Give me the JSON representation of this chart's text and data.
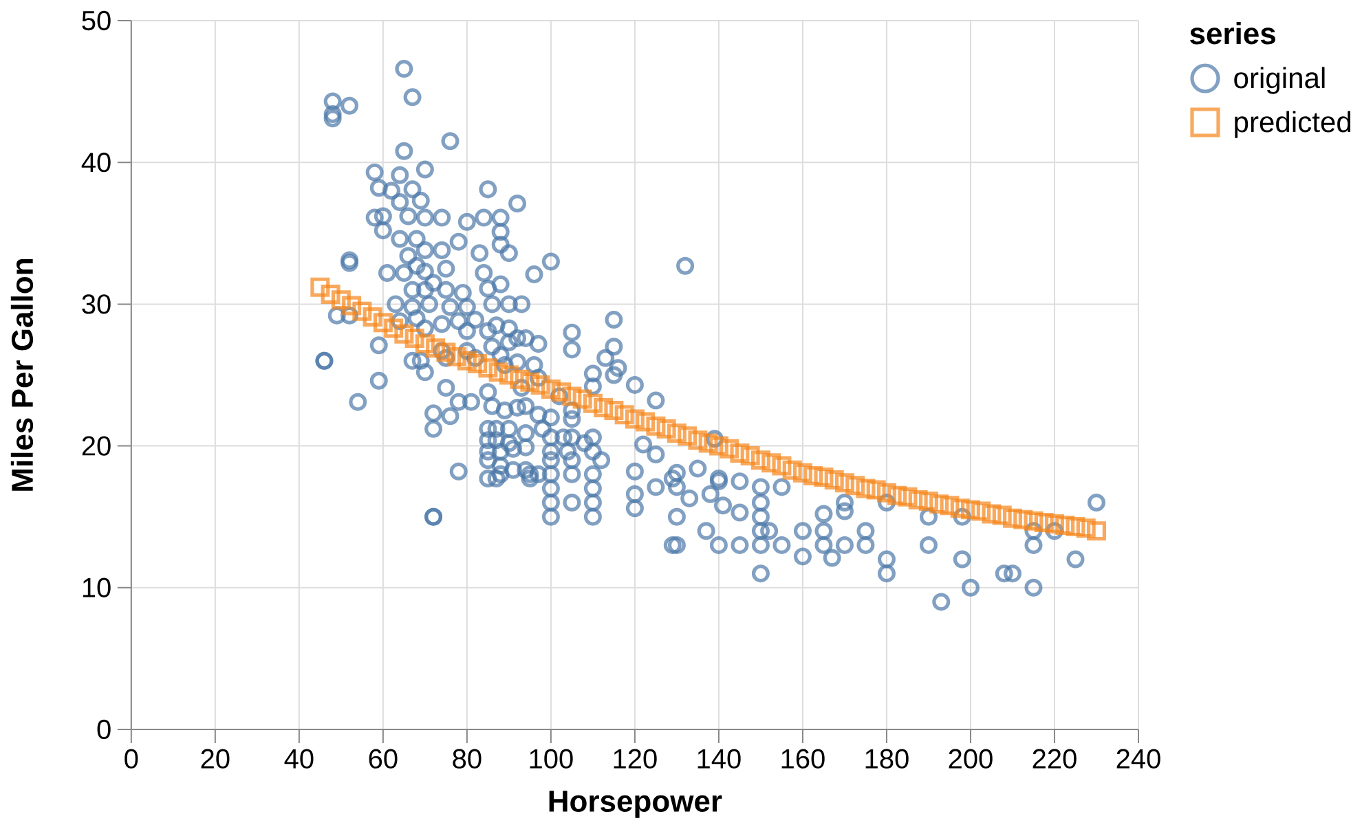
{
  "chart_data": {
    "type": "scatter",
    "xlabel": "Horsepower",
    "ylabel": "Miles Per Gallon",
    "legend_title": "series",
    "xlim": [
      0,
      240
    ],
    "ylim": [
      0,
      50
    ],
    "xticks": [
      0,
      20,
      40,
      60,
      80,
      100,
      120,
      140,
      160,
      180,
      200,
      220,
      240
    ],
    "yticks": [
      0,
      10,
      20,
      30,
      40,
      50
    ],
    "grid": true,
    "legend": "top right",
    "series": [
      {
        "name": "original",
        "color": "#4c78a8",
        "marker": "circle",
        "x": [
          48,
          48,
          48,
          52,
          65,
          67,
          76,
          65,
          58,
          64,
          70,
          85,
          92,
          59,
          62,
          67,
          64,
          69,
          58,
          60,
          66,
          70,
          74,
          80,
          84,
          88,
          88,
          88,
          90,
          83,
          78,
          74,
          60,
          64,
          68,
          70,
          52,
          52,
          61,
          65,
          70,
          75,
          84,
          96,
          100,
          85,
          90,
          66,
          68,
          72,
          67,
          70,
          75,
          79,
          63,
          67,
          71,
          76,
          80,
          86,
          93,
          88,
          64,
          68,
          70,
          74,
          78,
          80,
          82,
          85,
          87,
          90,
          90,
          92,
          94,
          97,
          49,
          52,
          46,
          46,
          59,
          59,
          54,
          67,
          69,
          74,
          75,
          80,
          82,
          86,
          88,
          89,
          92,
          96,
          97,
          93,
          75,
          78,
          81,
          85,
          86,
          89,
          92,
          94,
          97,
          102,
          105,
          70,
          72,
          72,
          76,
          72,
          72,
          78,
          85,
          87,
          90,
          85,
          87,
          90,
          85,
          88,
          91,
          94,
          94,
          98,
          100,
          100,
          103,
          104,
          108,
          85,
          88,
          91,
          85,
          87,
          94,
          95,
          100,
          100,
          105,
          105,
          100,
          100,
          105,
          105,
          105,
          132,
          115,
          115,
          113,
          116,
          115,
          110,
          110,
          120,
          125,
          122,
          125,
          120,
          125,
          120,
          120,
          110,
          110,
          110,
          110,
          100,
          129,
          130,
          130,
          133,
          135,
          130,
          129,
          130,
          137,
          139,
          140,
          140,
          138,
          141,
          140,
          145,
          145,
          145,
          150,
          150,
          150,
          150,
          150,
          150,
          152,
          155,
          155,
          160,
          160,
          165,
          165,
          167,
          170,
          170,
          170,
          175,
          175,
          180,
          180,
          180,
          190,
          190,
          193,
          198,
          200,
          198,
          208,
          210,
          215,
          215,
          215,
          220,
          225,
          230,
          165,
          88,
          95,
          105,
          110,
          110,
          112,
          105,
          100,
          97
        ],
        "values": [
          44.3,
          43.4,
          43.1,
          44.0,
          46.6,
          44.6,
          41.5,
          40.8,
          39.3,
          39.1,
          39.5,
          38.1,
          37.1,
          38.2,
          38.0,
          38.1,
          37.2,
          37.3,
          36.1,
          36.2,
          36.2,
          36.1,
          36.1,
          35.8,
          36.1,
          36.1,
          35.1,
          34.2,
          33.6,
          33.6,
          34.4,
          33.8,
          35.2,
          34.6,
          34.6,
          33.8,
          33.1,
          32.9,
          32.2,
          32.2,
          32.3,
          32.5,
          32.2,
          32.1,
          33.0,
          31.1,
          30.0,
          33.4,
          32.7,
          31.5,
          31.0,
          31.0,
          31.0,
          30.8,
          30.0,
          29.8,
          30.0,
          29.8,
          29.8,
          30.0,
          30.0,
          31.4,
          28.8,
          29.0,
          28.3,
          28.6,
          28.8,
          28.1,
          28.9,
          28.1,
          28.5,
          28.3,
          27.3,
          27.6,
          27.6,
          27.2,
          29.2,
          29.2,
          26.0,
          26.0,
          27.1,
          24.6,
          23.1,
          26.0,
          26.0,
          26.7,
          26.2,
          26.7,
          26.2,
          27.0,
          26.4,
          25.7,
          25.9,
          25.7,
          24.8,
          24.1,
          24.1,
          23.1,
          23.1,
          23.8,
          22.8,
          22.5,
          22.7,
          22.8,
          22.2,
          23.5,
          22.5,
          25.2,
          22.3,
          21.2,
          22.1,
          15.0,
          15.0,
          18.2,
          21.2,
          21.2,
          21.2,
          20.4,
          20.4,
          20.2,
          19.6,
          19.6,
          19.8,
          20.9,
          19.9,
          21.2,
          20.6,
          19.6,
          20.6,
          19.6,
          20.2,
          19.0,
          18.6,
          18.3,
          17.7,
          17.7,
          18.3,
          17.7,
          19.0,
          18.0,
          19.0,
          18.0,
          16.0,
          15.0,
          16.0,
          28.0,
          26.8,
          32.7,
          28.9,
          27.0,
          26.2,
          25.5,
          25.0,
          25.1,
          24.2,
          24.3,
          23.2,
          20.1,
          19.4,
          18.2,
          17.1,
          16.6,
          15.6,
          18.0,
          17.0,
          16.0,
          15.0,
          17.0,
          17.7,
          18.1,
          17.1,
          16.3,
          18.4,
          15.0,
          13.0,
          13.0,
          14.0,
          20.5,
          17.7,
          17.5,
          16.6,
          15.8,
          13.0,
          17.5,
          15.3,
          13.0,
          17.1,
          16.0,
          15.0,
          14.0,
          13.0,
          11.0,
          14.0,
          17.1,
          13.0,
          14.0,
          12.2,
          15.2,
          14.0,
          12.1,
          13.0,
          16.0,
          15.4,
          14.0,
          13.0,
          12.0,
          11.0,
          16.0,
          15.0,
          13.0,
          9.0,
          12.0,
          10.0,
          15.0,
          11.0,
          11.0,
          13.0,
          10.0,
          14.0,
          14.0,
          12.0,
          16.0,
          13.0,
          18.0,
          18.0,
          20.6,
          20.6,
          19.6,
          19.0,
          21.9,
          22.0,
          18.0
        ]
      },
      {
        "name": "predicted",
        "color": "#f58518",
        "marker": "square",
        "x": [
          45,
          47.5,
          50,
          52.5,
          55,
          57.5,
          60,
          62.5,
          65,
          67.5,
          70,
          72.5,
          75,
          77.5,
          80,
          82.5,
          85,
          87.5,
          90,
          92.5,
          95,
          97.5,
          100,
          102.5,
          105,
          107.5,
          110,
          112.5,
          115,
          117.5,
          120,
          122.5,
          125,
          127.5,
          130,
          132.5,
          135,
          137.5,
          140,
          142.5,
          145,
          147.5,
          150,
          152.5,
          155,
          157.5,
          160,
          162.5,
          165,
          167.5,
          170,
          172.5,
          175,
          177.5,
          180,
          182.5,
          185,
          187.5,
          190,
          192.5,
          195,
          197.5,
          200,
          202.5,
          205,
          207.5,
          210,
          212.5,
          215,
          217.5,
          220,
          222.5,
          225,
          227.5,
          230
        ],
        "values": [
          31.2,
          30.7,
          30.3,
          29.9,
          29.5,
          29.1,
          28.7,
          28.3,
          27.9,
          27.6,
          27.2,
          26.9,
          26.6,
          26.3,
          26.0,
          25.8,
          25.5,
          25.2,
          25.0,
          24.7,
          24.5,
          24.3,
          24.0,
          23.8,
          23.5,
          23.3,
          23.0,
          22.7,
          22.5,
          22.2,
          21.9,
          21.7,
          21.4,
          21.2,
          20.9,
          20.7,
          20.4,
          20.2,
          20.0,
          19.8,
          19.5,
          19.3,
          19.0,
          18.8,
          18.6,
          18.3,
          18.1,
          17.9,
          17.8,
          17.6,
          17.4,
          17.2,
          17.0,
          16.9,
          16.7,
          16.5,
          16.4,
          16.2,
          16.1,
          15.9,
          15.8,
          15.6,
          15.5,
          15.4,
          15.2,
          15.1,
          14.9,
          14.8,
          14.7,
          14.6,
          14.5,
          14.4,
          14.3,
          14.2,
          14.0
        ]
      }
    ]
  }
}
